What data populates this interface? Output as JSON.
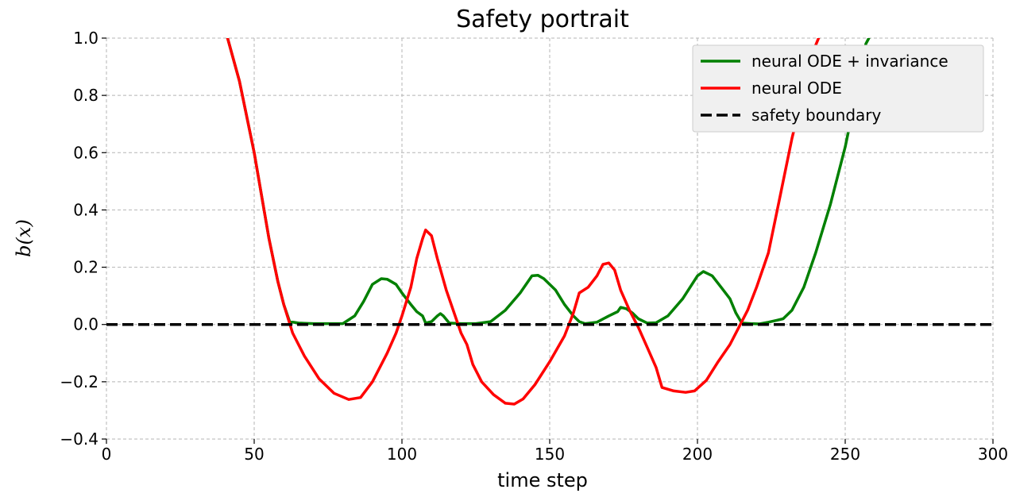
{
  "chart_data": {
    "type": "line",
    "title": "Safety portrait",
    "xlabel": "time step",
    "ylabel": "b(x)",
    "xlim": [
      0,
      300
    ],
    "ylim": [
      -0.4,
      1.0
    ],
    "xticks": [
      0,
      50,
      100,
      150,
      200,
      250,
      300
    ],
    "xtick_labels": [
      "0",
      "50",
      "100",
      "150",
      "200",
      "250",
      "300"
    ],
    "yticks": [
      -0.4,
      -0.2,
      0.0,
      0.2,
      0.4,
      0.6,
      0.8,
      1.0
    ],
    "ytick_labels": [
      "−0.4",
      "−0.2",
      "0.0",
      "0.2",
      "0.4",
      "0.6",
      "0.8",
      "1.0"
    ],
    "grid": true,
    "legend_position": "top-right",
    "series": [
      {
        "name": "neural ODE + invariance",
        "color": "#008000",
        "style": "solid",
        "points": [
          [
            41,
            1.0
          ],
          [
            45,
            0.85
          ],
          [
            50,
            0.6
          ],
          [
            55,
            0.3
          ],
          [
            58,
            0.15
          ],
          [
            60,
            0.07
          ],
          [
            62,
            0.01
          ],
          [
            65,
            0.005
          ],
          [
            70,
            0.003
          ],
          [
            80,
            0.003
          ],
          [
            84,
            0.03
          ],
          [
            87,
            0.08
          ],
          [
            90,
            0.14
          ],
          [
            93,
            0.16
          ],
          [
            95,
            0.158
          ],
          [
            98,
            0.14
          ],
          [
            100,
            0.11
          ],
          [
            103,
            0.07
          ],
          [
            105,
            0.045
          ],
          [
            107,
            0.03
          ],
          [
            108,
            0.005
          ],
          [
            110,
            0.01
          ],
          [
            112,
            0.03
          ],
          [
            113,
            0.038
          ],
          [
            114,
            0.03
          ],
          [
            116,
            0.005
          ],
          [
            120,
            0.003
          ],
          [
            125,
            0.003
          ],
          [
            130,
            0.01
          ],
          [
            135,
            0.05
          ],
          [
            140,
            0.11
          ],
          [
            144,
            0.17
          ],
          [
            146,
            0.172
          ],
          [
            148,
            0.16
          ],
          [
            152,
            0.12
          ],
          [
            155,
            0.07
          ],
          [
            158,
            0.03
          ],
          [
            160,
            0.01
          ],
          [
            162,
            0.003
          ],
          [
            166,
            0.008
          ],
          [
            170,
            0.03
          ],
          [
            173,
            0.045
          ],
          [
            174,
            0.06
          ],
          [
            176,
            0.055
          ],
          [
            178,
            0.04
          ],
          [
            180,
            0.02
          ],
          [
            183,
            0.005
          ],
          [
            186,
            0.006
          ],
          [
            190,
            0.03
          ],
          [
            195,
            0.09
          ],
          [
            200,
            0.17
          ],
          [
            202,
            0.185
          ],
          [
            205,
            0.17
          ],
          [
            208,
            0.13
          ],
          [
            211,
            0.09
          ],
          [
            213,
            0.04
          ],
          [
            215,
            0.005
          ],
          [
            218,
            0.003
          ],
          [
            221,
            0.002
          ],
          [
            224,
            0.008
          ],
          [
            227,
            0.015
          ],
          [
            229,
            0.02
          ],
          [
            232,
            0.05
          ],
          [
            236,
            0.13
          ],
          [
            240,
            0.25
          ],
          [
            245,
            0.42
          ],
          [
            250,
            0.62
          ],
          [
            254,
            0.82
          ],
          [
            257,
            0.98
          ],
          [
            258,
            1.0
          ]
        ]
      },
      {
        "name": "neural ODE",
        "color": "#ff0000",
        "style": "solid",
        "points": [
          [
            41,
            1.0
          ],
          [
            45,
            0.85
          ],
          [
            50,
            0.6
          ],
          [
            55,
            0.3
          ],
          [
            58,
            0.15
          ],
          [
            60,
            0.07
          ],
          [
            63,
            -0.03
          ],
          [
            67,
            -0.11
          ],
          [
            72,
            -0.19
          ],
          [
            77,
            -0.24
          ],
          [
            82,
            -0.262
          ],
          [
            86,
            -0.255
          ],
          [
            90,
            -0.2
          ],
          [
            95,
            -0.1
          ],
          [
            98,
            -0.03
          ],
          [
            100,
            0.03
          ],
          [
            103,
            0.13
          ],
          [
            105,
            0.23
          ],
          [
            107,
            0.3
          ],
          [
            108,
            0.33
          ],
          [
            110,
            0.31
          ],
          [
            112,
            0.23
          ],
          [
            115,
            0.12
          ],
          [
            118,
            0.03
          ],
          [
            120,
            -0.03
          ],
          [
            122,
            -0.07
          ],
          [
            124,
            -0.14
          ],
          [
            127,
            -0.2
          ],
          [
            131,
            -0.245
          ],
          [
            135,
            -0.275
          ],
          [
            138,
            -0.278
          ],
          [
            141,
            -0.26
          ],
          [
            145,
            -0.21
          ],
          [
            150,
            -0.13
          ],
          [
            155,
            -0.04
          ],
          [
            158,
            0.04
          ],
          [
            160,
            0.11
          ],
          [
            163,
            0.13
          ],
          [
            166,
            0.17
          ],
          [
            168,
            0.21
          ],
          [
            170,
            0.215
          ],
          [
            172,
            0.19
          ],
          [
            174,
            0.12
          ],
          [
            177,
            0.05
          ],
          [
            180,
            -0.01
          ],
          [
            183,
            -0.08
          ],
          [
            186,
            -0.15
          ],
          [
            188,
            -0.22
          ],
          [
            192,
            -0.232
          ],
          [
            196,
            -0.237
          ],
          [
            199,
            -0.232
          ],
          [
            203,
            -0.195
          ],
          [
            207,
            -0.13
          ],
          [
            211,
            -0.07
          ],
          [
            214,
            -0.01
          ],
          [
            217,
            0.05
          ],
          [
            220,
            0.13
          ],
          [
            224,
            0.25
          ],
          [
            228,
            0.45
          ],
          [
            232,
            0.65
          ],
          [
            236,
            0.82
          ],
          [
            239,
            0.95
          ],
          [
            241,
            1.0
          ]
        ]
      },
      {
        "name": "safety boundary",
        "color": "#000000",
        "style": "dashed",
        "points": [
          [
            0,
            0.0
          ],
          [
            300,
            0.0
          ]
        ]
      }
    ]
  }
}
